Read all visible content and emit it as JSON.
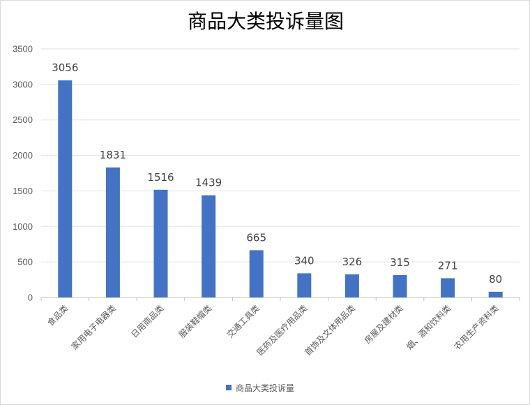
{
  "chart_data": {
    "type": "bar",
    "title": "商品大类投诉量图",
    "categories": [
      "食品类",
      "家用电子电器类",
      "日用商品类",
      "服装鞋帽类",
      "交通工具类",
      "医药及医疗用品类",
      "首饰及文体用品类",
      "房屋及建材类",
      "烟、酒和饮料类",
      "农用生产资料类"
    ],
    "series": [
      {
        "name": "商品大类投诉量",
        "values": [
          3056,
          1831,
          1516,
          1439,
          665,
          340,
          326,
          315,
          271,
          80
        ],
        "color": "#4472c4"
      }
    ],
    "ylim": [
      0,
      3500
    ],
    "yticks": [
      0,
      500,
      1000,
      1500,
      2000,
      2500,
      3000,
      3500
    ],
    "grid": true,
    "data_labels": true,
    "legend_position": "bottom"
  }
}
